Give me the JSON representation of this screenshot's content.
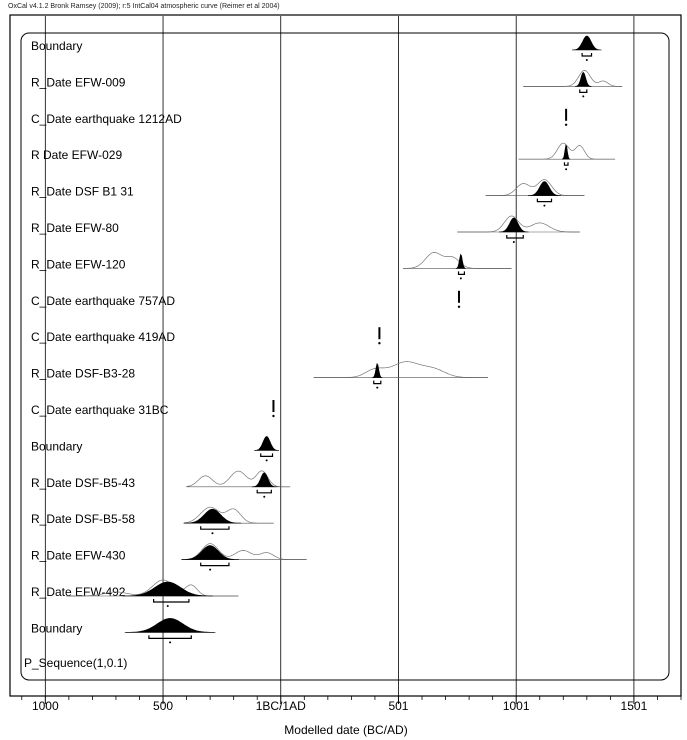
{
  "credit": "OxCal v4.1.2 Bronk Ramsey (2009); r:5 IntCal04 atmospheric curve (Reimer et al 2004)",
  "chart_data": {
    "type": "oxcal-multiplot",
    "xlabel": "Modelled date (BC/AD)",
    "xlim": [
      -1150,
      1700
    ],
    "grid": true,
    "ticks": [
      {
        "value": -1000,
        "label": "1000"
      },
      {
        "value": -500,
        "label": "500"
      },
      {
        "value": 0,
        "label": "1BC/1AD"
      },
      {
        "value": 500,
        "label": "501"
      },
      {
        "value": 1000,
        "label": "1001"
      },
      {
        "value": 1500,
        "label": "1501"
      }
    ],
    "model": "P_Sequence(1,0.1)",
    "rows": [
      {
        "label": "Boundary",
        "kind": "boundary",
        "post": {
          "center": 1300,
          "sigma": 18
        },
        "range": [
          1280,
          1320
        ]
      },
      {
        "label": "R_Date EFW-009",
        "kind": "date",
        "prior": {
          "span": [
            1030,
            1450
          ],
          "peaks": [
            [
              1290,
              0.9,
              25
            ],
            [
              1370,
              0.3,
              20
            ]
          ]
        },
        "post": {
          "center": 1285,
          "sigma": 10
        },
        "range": [
          1270,
          1300
        ]
      },
      {
        "label": "C_Date earthquake 1212AD",
        "kind": "point",
        "value": 1212
      },
      {
        "label": "R  Date EFW-029",
        "kind": "date",
        "prior": {
          "span": [
            1010,
            1420
          ],
          "peaks": [
            [
              1200,
              0.6,
              25
            ],
            [
              1270,
              0.5,
              20
            ]
          ]
        },
        "post": {
          "center": 1212,
          "sigma": 5
        },
        "range": [
          1205,
          1220
        ]
      },
      {
        "label": "R_Date DSF B1 31",
        "kind": "date",
        "prior": {
          "span": [
            870,
            1290
          ],
          "peaks": [
            [
              1030,
              0.6,
              30
            ],
            [
              1120,
              0.8,
              30
            ]
          ]
        },
        "post": {
          "center": 1120,
          "sigma": 20
        },
        "range": [
          1090,
          1150
        ]
      },
      {
        "label": "R_Date EFW-80",
        "kind": "date",
        "prior": {
          "span": [
            750,
            1270
          ],
          "peaks": [
            [
              980,
              0.7,
              30
            ],
            [
              1100,
              0.4,
              40
            ]
          ]
        },
        "post": {
          "center": 990,
          "sigma": 18
        },
        "range": [
          960,
          1030
        ]
      },
      {
        "label": "R_Date EFW-120",
        "kind": "date",
        "prior": {
          "span": [
            520,
            980
          ],
          "peaks": [
            [
              650,
              0.6,
              35
            ],
            [
              730,
              0.4,
              30
            ]
          ]
        },
        "post": {
          "center": 765,
          "sigma": 6
        },
        "range": [
          755,
          780
        ]
      },
      {
        "label": "C_Date earthquake 757AD",
        "kind": "point",
        "value": 757
      },
      {
        "label": "C_Date earthquake 419AD",
        "kind": "point",
        "value": 419
      },
      {
        "label": "R_Date DSF-B3-28",
        "kind": "date",
        "prior": {
          "span": [
            140,
            880
          ],
          "peaks": [
            [
              400,
              0.3,
              40
            ],
            [
              530,
              0.6,
              60
            ],
            [
              650,
              0.3,
              50
            ]
          ]
        },
        "post": {
          "center": 410,
          "sigma": 6
        },
        "range": [
          395,
          425
        ]
      },
      {
        "label": "C_Date earthquake 31BC",
        "kind": "point",
        "value": -31
      },
      {
        "label": "Boundary",
        "kind": "boundary",
        "post": {
          "center": -60,
          "sigma": 15
        },
        "range": [
          -85,
          -35
        ]
      },
      {
        "label": "R_Date DSF-B5-43",
        "kind": "date",
        "prior": {
          "span": [
            -400,
            40
          ],
          "peaks": [
            [
              -320,
              0.35,
              30
            ],
            [
              -180,
              0.5,
              35
            ],
            [
              -80,
              0.5,
              25
            ]
          ]
        },
        "post": {
          "center": -70,
          "sigma": 15
        },
        "range": [
          -100,
          -40
        ]
      },
      {
        "label": "R_Date DSF-B5-58",
        "kind": "date",
        "prior": {
          "span": [
            -410,
            -30
          ],
          "peaks": [
            [
              -300,
              0.7,
              40
            ],
            [
              -200,
              0.6,
              30
            ]
          ]
        },
        "post": {
          "center": -290,
          "sigma": 35
        },
        "range": [
          -340,
          -220
        ]
      },
      {
        "label": "R_Date EFW-430",
        "kind": "date",
        "prior": {
          "span": [
            -420,
            110
          ],
          "peaks": [
            [
              -300,
              0.7,
              35
            ],
            [
              -160,
              0.4,
              35
            ],
            [
              -60,
              0.3,
              30
            ]
          ]
        },
        "post": {
          "center": -300,
          "sigma": 35
        },
        "range": [
          -340,
          -220
        ]
      },
      {
        "label": "R_Date EFW-492",
        "kind": "date",
        "prior": {
          "span": [
            -910,
            -180
          ],
          "peaks": [
            [
              -700,
              0.15,
              50
            ],
            [
              -500,
              0.6,
              45
            ],
            [
              -380,
              0.4,
              25
            ]
          ]
        },
        "post": {
          "center": -480,
          "sigma": 55
        },
        "range": [
          -540,
          -390
        ]
      },
      {
        "label": "Boundary",
        "kind": "boundary",
        "post": {
          "center": -470,
          "sigma": 55
        },
        "range": [
          -560,
          -380
        ]
      }
    ]
  }
}
